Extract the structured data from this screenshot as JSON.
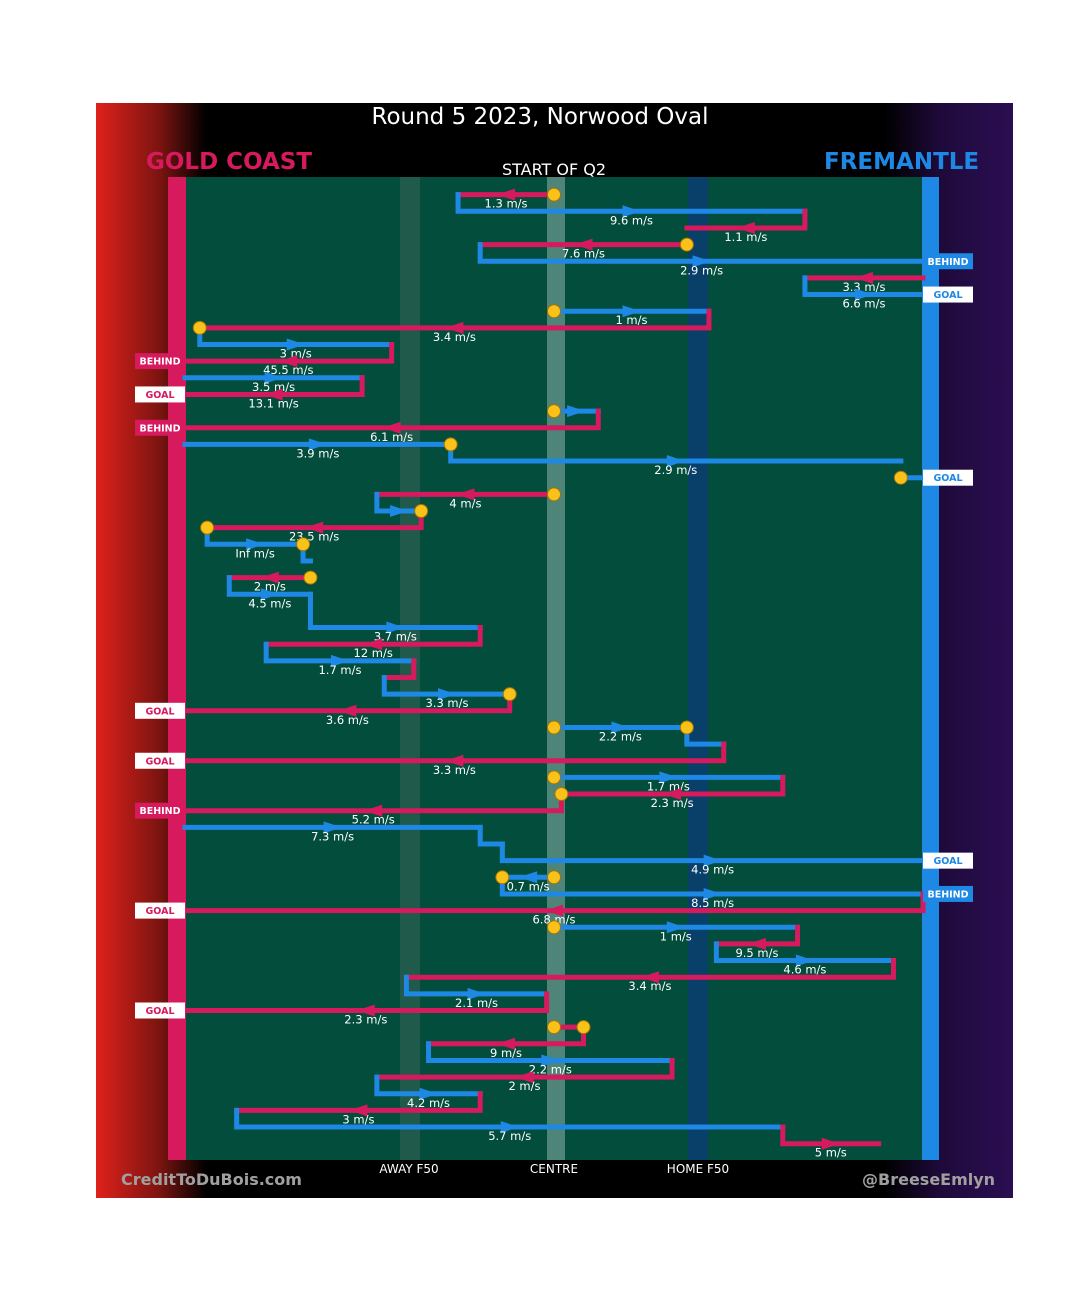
{
  "chart_data": {
    "type": "flow",
    "title": "Round 5 2023, Norwood Oval",
    "team_left": "GOLD COAST",
    "team_right": "FREMANTLE",
    "segment_label": "START OF Q2",
    "axis_labels": [
      "AWAY F50",
      "CENTRE",
      "HOME F50"
    ],
    "credits": {
      "left": "CreditToDuBois.com",
      "right": "@BreeseEmlyn"
    },
    "colors": {
      "gold_coast": "#d61a5d",
      "fremantle": "#1e88e5",
      "ball": "#f9c21b",
      "pitch": "#034d3c"
    },
    "x_range": [
      0,
      100
    ],
    "events": [
      {
        "team": "gc",
        "x1": 50,
        "x2": 37,
        "y": 1,
        "step": 0,
        "label": "1.3 m/s",
        "start": true
      },
      {
        "team": "fre",
        "x1": 37,
        "x2": 84,
        "y": 2,
        "step": 1,
        "label": "9.6 m/s"
      },
      {
        "team": "gc",
        "x1": 84,
        "x2": 68,
        "y": 3,
        "step": 1,
        "label": "1.1 m/s"
      },
      {
        "team": "gc",
        "x1": 68,
        "x2": 40,
        "y": 4,
        "step": 0,
        "label": "7.6 m/s",
        "start": true
      },
      {
        "team": "fre",
        "x1": 40,
        "x2": 100,
        "y": 5,
        "step": 1,
        "label": "2.9 m/s",
        "outcome": "BEHIND"
      },
      {
        "team": "gc",
        "x1": 100,
        "x2": 84,
        "y": 6,
        "step": 0,
        "label": "3.3 m/s"
      },
      {
        "team": "fre",
        "x1": 84,
        "x2": 100,
        "y": 7,
        "step": 1,
        "label": "6.6 m/s",
        "outcome": "GOAL"
      },
      {
        "team": "fre",
        "x1": 50,
        "x2": 71,
        "y": 8,
        "step": 0,
        "label": "1 m/s",
        "start": true
      },
      {
        "team": "gc",
        "x1": 71,
        "x2": 2,
        "y": 9,
        "step": 1,
        "label": "3.4 m/s"
      },
      {
        "team": "fre",
        "x1": 2,
        "x2": 28,
        "y": 10,
        "step": 1,
        "label": "3 m/s",
        "start": true
      },
      {
        "team": "gc",
        "x1": 28,
        "x2": 0,
        "y": 11,
        "step": 1,
        "label": "45.5 m/s",
        "outcome": "BEHIND"
      },
      {
        "team": "fre",
        "x1": 0,
        "x2": 24,
        "y": 12,
        "step": 0,
        "label": "3.5 m/s"
      },
      {
        "team": "gc",
        "x1": 24,
        "x2": 0,
        "y": 13,
        "step": 1,
        "label": "13.1 m/s",
        "outcome": "GOAL"
      },
      {
        "team": "fre",
        "x1": 50,
        "x2": 56,
        "y": 14,
        "step": 0,
        "label": "",
        "start": true
      },
      {
        "team": "gc",
        "x1": 56,
        "x2": 0,
        "y": 15,
        "step": 1,
        "label": "6.1 m/s",
        "outcome": "BEHIND"
      },
      {
        "team": "fre",
        "x1": 0,
        "x2": 36,
        "y": 16,
        "step": 0,
        "label": "3.9 m/s"
      },
      {
        "team": "fre",
        "x1": 36,
        "x2": 97,
        "y": 17,
        "step": 1,
        "label": "2.9 m/s",
        "start": true
      },
      {
        "team": "fre",
        "x1": 97,
        "x2": 100,
        "y": 18,
        "step": 0,
        "label": "",
        "start": true,
        "outcome": "GOAL"
      },
      {
        "team": "gc",
        "x1": 50,
        "x2": 26,
        "y": 19,
        "step": 0,
        "label": "4 m/s",
        "start": true
      },
      {
        "team": "fre",
        "x1": 26,
        "x2": 32,
        "y": 20,
        "step": 1,
        "label": ""
      },
      {
        "team": "gc",
        "x1": 32,
        "x2": 3,
        "y": 21,
        "step": 1,
        "label": "23.5 m/s",
        "start": true
      },
      {
        "team": "fre",
        "x1": 3,
        "x2": 16,
        "y": 22,
        "step": 1,
        "label": "Inf m/s",
        "start": true
      },
      {
        "team": "fre",
        "x1": 16,
        "x2": 17,
        "y": 23,
        "step": 1,
        "label": "",
        "start": true
      },
      {
        "team": "gc",
        "x1": 17,
        "x2": 6,
        "y": 24,
        "step": 0,
        "label": "2 m/s",
        "start": true
      },
      {
        "team": "fre",
        "x1": 6,
        "x2": 17,
        "y": 25,
        "step": 1,
        "label": "4.5 m/s"
      },
      {
        "team": "fre",
        "x1": 17,
        "x2": 40,
        "y": 27,
        "step": 2,
        "label": "3.7 m/s"
      },
      {
        "team": "gc",
        "x1": 40,
        "x2": 11,
        "y": 28,
        "step": 1,
        "label": "12 m/s"
      },
      {
        "team": "fre",
        "x1": 11,
        "x2": 31,
        "y": 29,
        "step": 1,
        "label": "1.7 m/s"
      },
      {
        "team": "gc",
        "x1": 31,
        "x2": 27,
        "y": 30,
        "step": 1,
        "label": ""
      },
      {
        "team": "fre",
        "x1": 27,
        "x2": 44,
        "y": 31,
        "step": 1,
        "label": "3.3 m/s"
      },
      {
        "team": "gc",
        "x1": 44,
        "x2": 0,
        "y": 32,
        "step": 1,
        "label": "3.6 m/s",
        "start": true,
        "outcome": "GOAL"
      },
      {
        "team": "fre",
        "x1": 50,
        "x2": 68,
        "y": 33,
        "step": 0,
        "label": "2.2 m/s",
        "start": true
      },
      {
        "team": "fre",
        "x1": 68,
        "x2": 73,
        "y": 34,
        "step": 1,
        "label": "",
        "start": true
      },
      {
        "team": "gc",
        "x1": 73,
        "x2": 0,
        "y": 35,
        "step": 1,
        "label": "3.3 m/s",
        "outcome": "GOAL"
      },
      {
        "team": "fre",
        "x1": 50,
        "x2": 81,
        "y": 36,
        "step": 0,
        "label": "1.7 m/s",
        "start": true
      },
      {
        "team": "gc",
        "x1": 81,
        "x2": 51,
        "y": 37,
        "step": 1,
        "label": "2.3 m/s"
      },
      {
        "team": "gc",
        "x1": 51,
        "x2": 0,
        "y": 38,
        "step": 1,
        "label": "5.2 m/s",
        "start": true,
        "outcome": "BEHIND"
      },
      {
        "team": "fre",
        "x1": 0,
        "x2": 40,
        "y": 39,
        "step": 0,
        "label": "7.3 m/s"
      },
      {
        "team": "fre",
        "x1": 40,
        "x2": 43,
        "y": 40,
        "step": 1,
        "label": ""
      },
      {
        "team": "fre",
        "x1": 43,
        "x2": 100,
        "y": 41,
        "step": 1,
        "label": "4.9 m/s",
        "outcome": "GOAL"
      },
      {
        "team": "fre",
        "x1": 50,
        "x2": 43,
        "y": 42,
        "step": 0,
        "label": "0.7 m/s",
        "start": true
      },
      {
        "team": "fre",
        "x1": 43,
        "x2": 100,
        "y": 43,
        "step": 1,
        "label": "8.5 m/s",
        "start": true,
        "outcome": "BEHIND"
      },
      {
        "team": "gc",
        "x1": 100,
        "x2": 0,
        "y": 44,
        "step": 1,
        "label": "6.8 m/s",
        "outcome": "GOAL"
      },
      {
        "team": "fre",
        "x1": 50,
        "x2": 83,
        "y": 45,
        "step": 0,
        "label": "1 m/s",
        "start": true
      },
      {
        "team": "gc",
        "x1": 83,
        "x2": 72,
        "y": 46,
        "step": 1,
        "label": "9.5 m/s"
      },
      {
        "team": "fre",
        "x1": 72,
        "x2": 96,
        "y": 47,
        "step": 1,
        "label": "4.6 m/s"
      },
      {
        "team": "gc",
        "x1": 96,
        "x2": 30,
        "y": 48,
        "step": 1,
        "label": "3.4 m/s"
      },
      {
        "team": "fre",
        "x1": 30,
        "x2": 49,
        "y": 49,
        "step": 1,
        "label": "2.1 m/s"
      },
      {
        "team": "gc",
        "x1": 49,
        "x2": 0,
        "y": 50,
        "step": 1,
        "label": "2.3 m/s",
        "outcome": "GOAL"
      },
      {
        "team": "gc",
        "x1": 50,
        "x2": 54,
        "y": 51,
        "step": 0,
        "label": "",
        "start": true
      },
      {
        "team": "gc",
        "x1": 54,
        "x2": 33,
        "y": 52,
        "step": 1,
        "label": "9 m/s",
        "start": true
      },
      {
        "team": "fre",
        "x1": 33,
        "x2": 66,
        "y": 53,
        "step": 1,
        "label": "2.2 m/s"
      },
      {
        "team": "gc",
        "x1": 66,
        "x2": 26,
        "y": 54,
        "step": 1,
        "label": "2 m/s"
      },
      {
        "team": "fre",
        "x1": 26,
        "x2": 40,
        "y": 55,
        "step": 1,
        "label": "4.2 m/s"
      },
      {
        "team": "gc",
        "x1": 40,
        "x2": 7,
        "y": 56,
        "step": 1,
        "label": "3 m/s"
      },
      {
        "team": "fre",
        "x1": 7,
        "x2": 81,
        "y": 57,
        "step": 1,
        "label": "5.7 m/s"
      },
      {
        "team": "gc",
        "x1": 81,
        "x2": 94,
        "y": 58,
        "step": 1,
        "label": "5 m/s"
      }
    ]
  }
}
